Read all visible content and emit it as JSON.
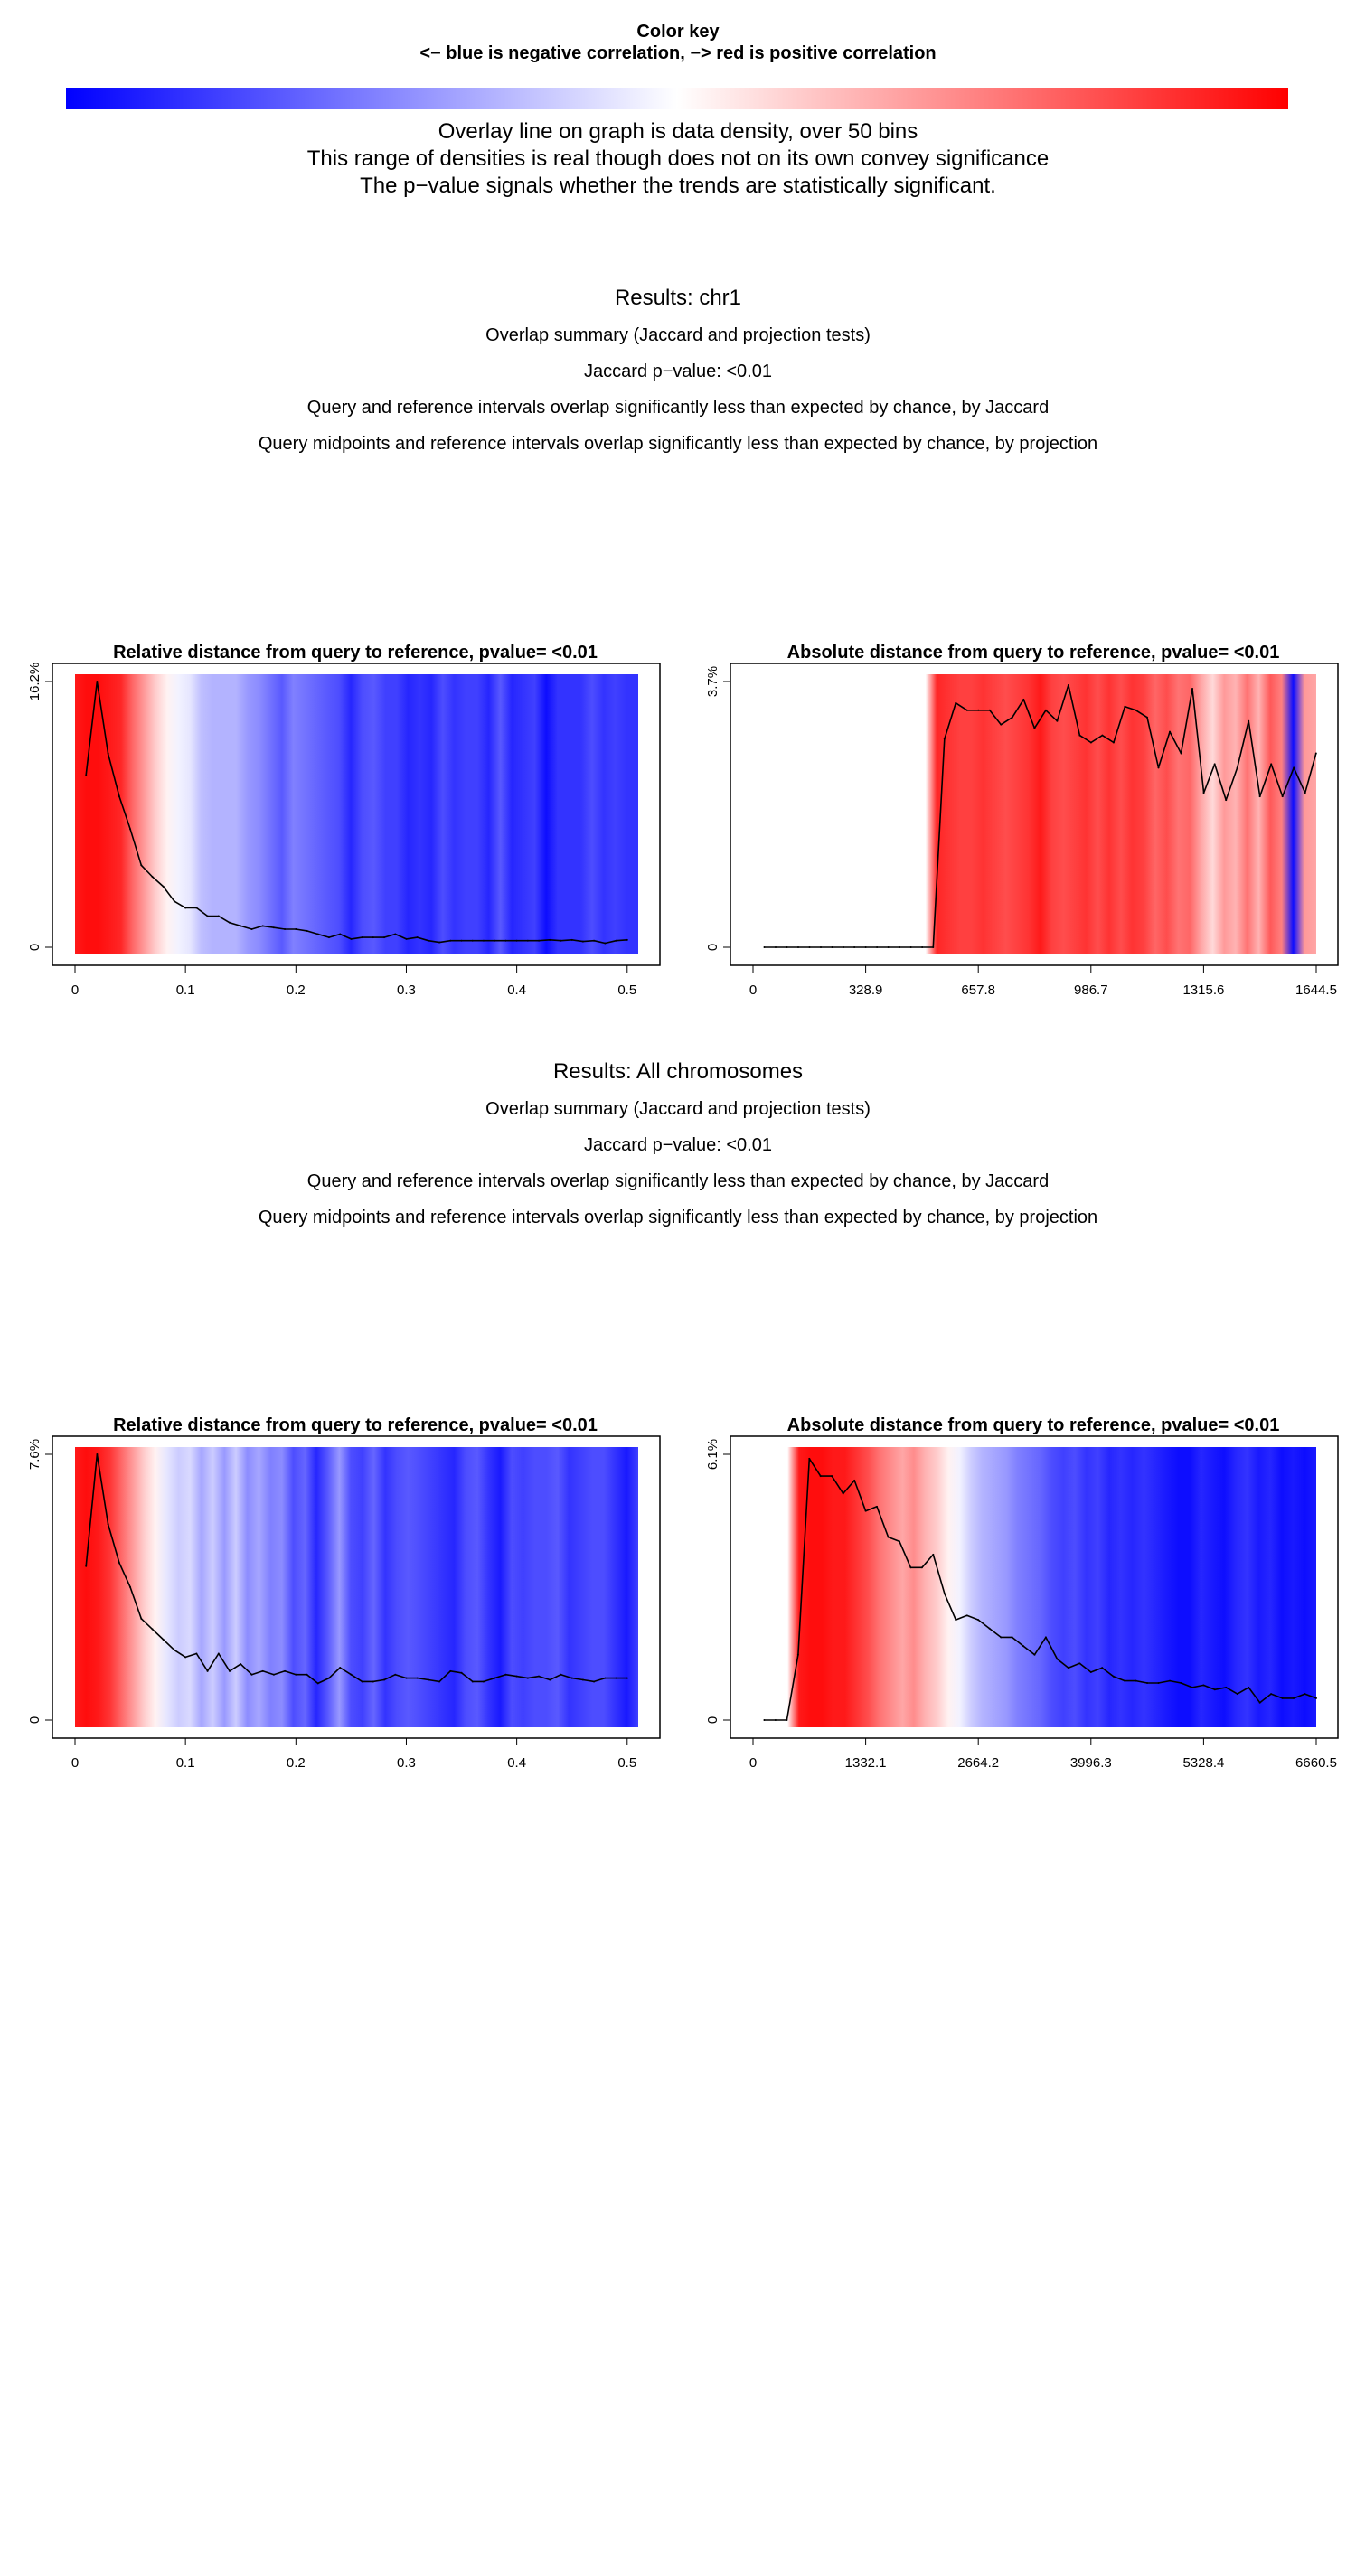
{
  "color_key": {
    "title": "Color key",
    "subtitle": "<− blue is negative correlation, −> red is positive correlation",
    "negative_color": "#0000ff",
    "neutral_color": "#ffffff",
    "positive_color": "#ff0000"
  },
  "notes": [
    "Overlay line on graph is data density, over 50  bins",
    "This range of densities is real though does not on its own convey significance",
    "The p−value signals whether the trends are statistically significant."
  ],
  "sections": [
    {
      "title": "Results: chr1",
      "lines": [
        "Overlap summary (Jaccard and projection tests)",
        "Jaccard p−value: <0.01",
        "Query and reference intervals overlap significantly less than expected by chance, by Jaccard",
        "Query midpoints and reference intervals overlap significantly less than expected by chance, by projection"
      ]
    },
    {
      "title": "Results: All chromosomes",
      "lines": [
        "Overlap summary (Jaccard and projection tests)",
        "Jaccard p−value: <0.01",
        "Query and reference intervals overlap significantly less than expected by chance, by Jaccard",
        "Query midpoints and reference intervals overlap significantly less than expected by chance, by projection"
      ]
    }
  ],
  "chart_data": [
    {
      "type": "line",
      "title": "Relative distance from query to reference, pvalue= <0.01",
      "xlim": [
        0,
        0.51
      ],
      "ylim": [
        0,
        16.2
      ],
      "xticks": [
        "0",
        "0.1",
        "0.2",
        "0.3",
        "0.4",
        "0.5"
      ],
      "xtick_values": [
        0,
        0.1,
        0.2,
        0.3,
        0.4,
        0.5
      ],
      "yticks": [
        "0",
        "16.2%"
      ],
      "ytick_values": [
        0,
        16.2
      ],
      "x": [
        0.01,
        0.02,
        0.03,
        0.04,
        0.05,
        0.06,
        0.07,
        0.08,
        0.09,
        0.1,
        0.11,
        0.12,
        0.13,
        0.14,
        0.15,
        0.16,
        0.17,
        0.18,
        0.19,
        0.2,
        0.21,
        0.22,
        0.23,
        0.24,
        0.25,
        0.26,
        0.27,
        0.28,
        0.29,
        0.3,
        0.31,
        0.32,
        0.33,
        0.34,
        0.35,
        0.36,
        0.37,
        0.38,
        0.39,
        0.4,
        0.41,
        0.42,
        0.43,
        0.44,
        0.45,
        0.46,
        0.47,
        0.48,
        0.49,
        0.5
      ],
      "y": [
        10.5,
        16.2,
        11.8,
        9.2,
        7.2,
        5.0,
        4.3,
        3.7,
        2.8,
        2.4,
        2.4,
        1.9,
        1.9,
        1.5,
        1.3,
        1.1,
        1.3,
        1.2,
        1.1,
        1.1,
        1.0,
        0.8,
        0.6,
        0.8,
        0.5,
        0.6,
        0.6,
        0.6,
        0.8,
        0.5,
        0.6,
        0.4,
        0.3,
        0.4,
        0.4,
        0.4,
        0.4,
        0.4,
        0.4,
        0.4,
        0.4,
        0.4,
        0.45,
        0.4,
        0.45,
        0.35,
        0.4,
        0.25,
        0.4,
        0.45
      ],
      "heat": [
        0.9,
        0.95,
        0.95,
        0.9,
        0.85,
        0.6,
        0.4,
        0.2,
        0.05,
        -0.05,
        -0.1,
        -0.25,
        -0.3,
        -0.3,
        -0.3,
        -0.4,
        -0.45,
        -0.55,
        -0.65,
        -0.5,
        -0.55,
        -0.6,
        -0.65,
        -0.7,
        -0.85,
        -0.7,
        -0.65,
        -0.75,
        -0.75,
        -0.85,
        -0.8,
        -0.85,
        -0.7,
        -0.8,
        -0.75,
        -0.75,
        -0.85,
        -0.65,
        -0.85,
        -0.8,
        -0.75,
        -0.95,
        -0.8,
        -0.8,
        -0.8,
        -0.7,
        -0.8,
        -0.75,
        -0.8,
        -0.8
      ]
    },
    {
      "type": "line",
      "title": "Absolute distance from query to reference, pvalue= <0.01",
      "xlim": [
        0,
        1644.5
      ],
      "ylim": [
        0,
        3.7
      ],
      "xticks": [
        "0",
        "328.9",
        "657.8",
        "986.7",
        "1315.6",
        "1644.5"
      ],
      "xtick_values": [
        0,
        328.9,
        657.8,
        986.7,
        1315.6,
        1644.5
      ],
      "yticks": [
        "0",
        "3.7%"
      ],
      "ytick_values": [
        0,
        3.7
      ],
      "x": [
        33,
        66,
        99,
        132,
        165,
        198,
        231,
        264,
        296,
        329,
        362,
        395,
        428,
        461,
        494,
        526,
        559,
        592,
        625,
        658,
        691,
        724,
        757,
        790,
        822,
        855,
        888,
        921,
        954,
        987,
        1020,
        1053,
        1086,
        1118,
        1151,
        1184,
        1217,
        1250,
        1283,
        1316,
        1348,
        1381,
        1414,
        1447,
        1480,
        1513,
        1546,
        1579,
        1612,
        1644
      ],
      "y": [
        0,
        0,
        0,
        0,
        0,
        0,
        0,
        0,
        0,
        0,
        0,
        0,
        0,
        0,
        0,
        0,
        2.9,
        3.4,
        3.3,
        3.3,
        3.3,
        3.1,
        3.2,
        3.45,
        3.05,
        3.3,
        3.15,
        3.65,
        2.95,
        2.85,
        2.95,
        2.85,
        3.35,
        3.3,
        3.2,
        2.5,
        3.0,
        2.7,
        3.6,
        2.15,
        2.55,
        2.05,
        2.5,
        3.15,
        2.1,
        2.55,
        2.1,
        2.5,
        2.15,
        2.7
      ],
      "heat": [
        0,
        0,
        0,
        0,
        0,
        0,
        0,
        0,
        0,
        0,
        0,
        0,
        0,
        0,
        0,
        0,
        0.85,
        0.8,
        0.75,
        0.75,
        0.8,
        0.75,
        0.7,
        0.75,
        0.8,
        0.9,
        0.75,
        0.7,
        0.75,
        0.8,
        0.7,
        0.8,
        0.7,
        0.8,
        0.75,
        0.6,
        0.7,
        0.55,
        0.6,
        0.35,
        0.15,
        0.4,
        0.3,
        0.55,
        0.3,
        0.65,
        0.5,
        -0.95,
        0.4,
        0.35
      ]
    },
    {
      "type": "line",
      "title": "Relative distance from query to reference, pvalue= <0.01",
      "xlim": [
        0,
        0.51
      ],
      "ylim": [
        0,
        7.6
      ],
      "xticks": [
        "0",
        "0.1",
        "0.2",
        "0.3",
        "0.4",
        "0.5"
      ],
      "xtick_values": [
        0,
        0.1,
        0.2,
        0.3,
        0.4,
        0.5
      ],
      "yticks": [
        "0",
        "7.6%"
      ],
      "ytick_values": [
        0,
        7.6
      ],
      "x": [
        0.01,
        0.02,
        0.03,
        0.04,
        0.05,
        0.06,
        0.07,
        0.08,
        0.09,
        0.1,
        0.11,
        0.12,
        0.13,
        0.14,
        0.15,
        0.16,
        0.17,
        0.18,
        0.19,
        0.2,
        0.21,
        0.22,
        0.23,
        0.24,
        0.25,
        0.26,
        0.27,
        0.28,
        0.29,
        0.3,
        0.31,
        0.32,
        0.33,
        0.34,
        0.35,
        0.36,
        0.37,
        0.38,
        0.39,
        0.4,
        0.41,
        0.42,
        0.43,
        0.44,
        0.45,
        0.46,
        0.47,
        0.48,
        0.49,
        0.5
      ],
      "y": [
        4.4,
        7.6,
        5.6,
        4.5,
        3.8,
        2.9,
        2.6,
        2.3,
        2.0,
        1.8,
        1.9,
        1.4,
        1.9,
        1.4,
        1.6,
        1.3,
        1.4,
        1.3,
        1.4,
        1.3,
        1.3,
        1.05,
        1.2,
        1.5,
        1.3,
        1.1,
        1.1,
        1.15,
        1.3,
        1.2,
        1.2,
        1.15,
        1.1,
        1.4,
        1.35,
        1.1,
        1.1,
        1.2,
        1.3,
        1.25,
        1.2,
        1.25,
        1.15,
        1.3,
        1.2,
        1.15,
        1.1,
        1.2,
        1.2,
        1.2
      ],
      "heat": [
        0.9,
        0.95,
        0.9,
        0.8,
        0.6,
        0.4,
        0.2,
        0.05,
        -0.1,
        -0.2,
        -0.15,
        -0.35,
        -0.2,
        -0.4,
        -0.2,
        -0.45,
        -0.35,
        -0.5,
        -0.45,
        -0.7,
        -0.6,
        -0.85,
        -0.65,
        -0.4,
        -0.7,
        -0.75,
        -0.6,
        -0.8,
        -0.7,
        -0.65,
        -0.7,
        -0.75,
        -0.8,
        -0.85,
        -0.7,
        -0.65,
        -0.8,
        -0.9,
        -0.7,
        -0.75,
        -0.7,
        -0.7,
        -0.65,
        -0.8,
        -0.75,
        -0.7,
        -0.7,
        -0.8,
        -0.9,
        -0.75
      ]
    },
    {
      "type": "line",
      "title": "Absolute distance from query to reference, pvalue= <0.01",
      "xlim": [
        0,
        6660.5
      ],
      "ylim": [
        0,
        6.1
      ],
      "xticks": [
        "0",
        "1332.1",
        "2664.2",
        "3996.3",
        "5328.4",
        "6660.5"
      ],
      "xtick_values": [
        0,
        1332.1,
        2664.2,
        3996.3,
        5328.4,
        6660.5
      ],
      "yticks": [
        "0",
        "6.1%"
      ],
      "ytick_values": [
        0,
        6.1
      ],
      "x": [
        133,
        266,
        400,
        533,
        666,
        799,
        932,
        1066,
        1199,
        1332,
        1465,
        1599,
        1732,
        1865,
        1998,
        2131,
        2265,
        2398,
        2531,
        2664,
        2797,
        2931,
        3064,
        3197,
        3330,
        3463,
        3597,
        3730,
        3863,
        3996,
        4129,
        4263,
        4396,
        4529,
        4662,
        4795,
        4929,
        5062,
        5195,
        5328,
        5461,
        5595,
        5728,
        5861,
        5994,
        6127,
        6261,
        6394,
        6527,
        6660
      ],
      "y": [
        0,
        0,
        0,
        1.5,
        6.0,
        5.6,
        5.6,
        5.2,
        5.5,
        4.8,
        4.9,
        4.2,
        4.1,
        3.5,
        3.5,
        3.8,
        2.9,
        2.3,
        2.4,
        2.3,
        2.1,
        1.9,
        1.9,
        1.7,
        1.5,
        1.9,
        1.4,
        1.2,
        1.3,
        1.1,
        1.2,
        1.0,
        0.9,
        0.9,
        0.85,
        0.85,
        0.9,
        0.85,
        0.75,
        0.8,
        0.7,
        0.75,
        0.6,
        0.75,
        0.4,
        0.6,
        0.5,
        0.5,
        0.6,
        0.5
      ],
      "heat": [
        0,
        0,
        0,
        0,
        0.9,
        0.95,
        0.95,
        0.9,
        0.9,
        0.8,
        0.7,
        0.55,
        0.45,
        0.35,
        0.45,
        0.3,
        0.2,
        0.05,
        -0.05,
        -0.2,
        -0.3,
        -0.35,
        -0.4,
        -0.5,
        -0.55,
        -0.6,
        -0.7,
        -0.75,
        -0.7,
        -0.8,
        -0.75,
        -0.85,
        -0.8,
        -0.85,
        -0.8,
        -0.85,
        -0.9,
        -0.95,
        -0.95,
        -0.85,
        -0.9,
        -0.95,
        -0.85,
        -0.8,
        -0.9,
        -0.85,
        -0.95,
        -0.9,
        -0.95,
        -0.9
      ]
    }
  ]
}
